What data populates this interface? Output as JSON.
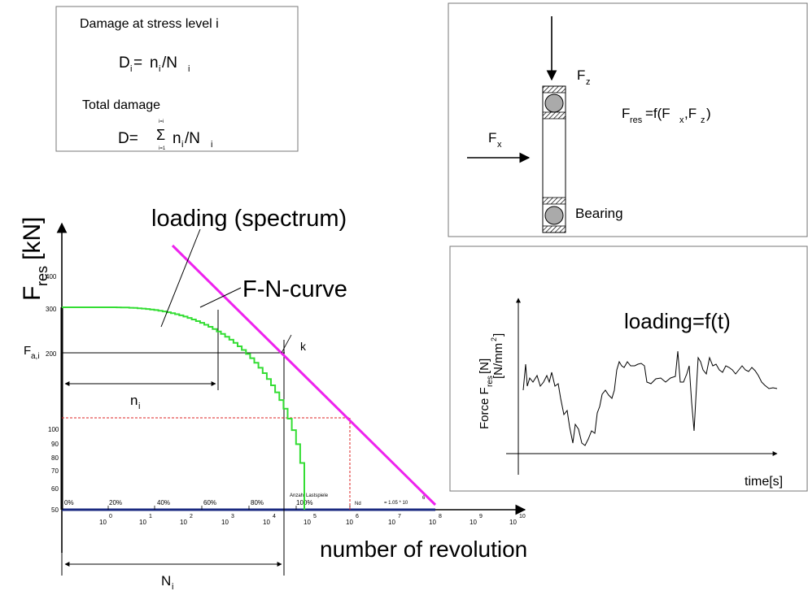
{
  "damage_box": {
    "title": "Damage at stress level i",
    "formula_lhs": "D",
    "formula_lhs_sub": "i",
    "formula_rhs_n": "n",
    "formula_rhs_n_sub": "i",
    "formula_rhs_slash": "/N",
    "formula_rhs_N_sub": "i",
    "total_label": "Total damage",
    "total_lhs": "D=",
    "sum_symbol": "Σ",
    "sum_upper": "i=i",
    "sum_lower": "i=1",
    "total_n": "n",
    "total_n_sub": "i",
    "total_slash": "/N",
    "total_N_sub": "i"
  },
  "bearing_box": {
    "fz_label": "F",
    "fz_sub": "z",
    "fx_label": "F",
    "fx_sub": "x",
    "fres_label": "F",
    "fres_sub": "res",
    "fres_eq": "=f(F",
    "fres_eq_sub1": "x",
    "fres_comma": ",F",
    "fres_eq_sub2": "z",
    "fres_close": ")",
    "bearing_label": "Bearing"
  },
  "time_box": {
    "title": "loading=f(t)",
    "y_label_1": "Force F",
    "y_label_sub": "res",
    "y_label_2": " [N]",
    "y_label_unit": "[N/mm",
    "y_label_unit_sup": "2",
    "y_label_unit_close": "]",
    "x_label": "time[s]"
  },
  "chart": {
    "y_axis_label": "F",
    "y_axis_sub": "res",
    "y_axis_unit": " [kN]",
    "x_axis_label": "number of revolution",
    "spectrum_label": "loading (spectrum)",
    "fn_curve_label": "F-N-curve",
    "k_label": "k",
    "fai_label": "F",
    "fai_sub": "a,i",
    "ni_label": "n",
    "ni_sub": "i",
    "Ni_label": "N",
    "Ni_sub": "i",
    "y_ticks": [
      "400",
      "300",
      "200",
      "100",
      "90",
      "80",
      "70",
      "60",
      "50"
    ],
    "x_ticks": [
      {
        "base": "10",
        "exp": "0"
      },
      {
        "base": "10",
        "exp": "1"
      },
      {
        "base": "10",
        "exp": "2"
      },
      {
        "base": "10",
        "exp": "3"
      },
      {
        "base": "10",
        "exp": "4"
      },
      {
        "base": "10",
        "exp": "5"
      },
      {
        "base": "10",
        "exp": "6"
      },
      {
        "base": "10",
        "exp": "7"
      },
      {
        "base": "10",
        "exp": "8"
      },
      {
        "base": "10",
        "exp": "9"
      },
      {
        "base": "10",
        "exp": "10"
      }
    ],
    "percent_ticks": [
      "0%",
      "20%",
      "40%",
      "60%",
      "80%",
      "100%"
    ],
    "small_text_1": "Anzahl Lastspiele",
    "small_text_nd": "Nd",
    "small_text_nd_val": "= 1.05 * 10",
    "small_text_nd_exp": "6"
  },
  "colors": {
    "spectrum": "#33dd33",
    "fn_curve": "#ee22ee",
    "baseline": "#1a2a80",
    "dashed": "#dd2222"
  }
}
